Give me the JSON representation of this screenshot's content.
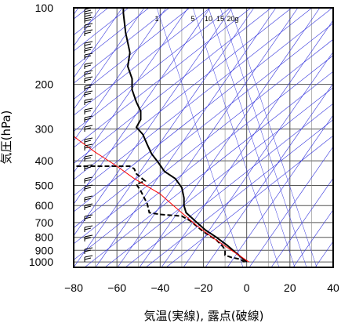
{
  "chart_data": {
    "type": "line",
    "xlabel": "気温(実線), 露点(破線)",
    "ylabel": "気圧(hPa)",
    "xlim": [
      -80,
      40
    ],
    "ylim": [
      1050,
      100
    ],
    "y_scale": "log",
    "x_ticks": [
      "−80",
      "−60",
      "−40",
      "−20",
      "0",
      "20",
      "40"
    ],
    "x_tick_values": [
      -80,
      -60,
      -40,
      -20,
      0,
      20,
      40
    ],
    "y_ticks": [
      "100",
      "200",
      "300",
      "400",
      "500",
      "600",
      "700",
      "800",
      "900",
      "1000"
    ],
    "y_tick_values": [
      100,
      200,
      300,
      400,
      500,
      600,
      700,
      800,
      900,
      1000
    ],
    "grid": true,
    "mixing_ratio_labels": [
      "1",
      "5",
      "10",
      "15",
      "20g"
    ],
    "series": [
      {
        "style": "solid",
        "color": "#000000",
        "points": [
          [
            -57,
            100
          ],
          [
            -57,
            105
          ],
          [
            -56,
            125
          ],
          [
            -54,
            150
          ],
          [
            -55,
            170
          ],
          [
            -53,
            190
          ],
          [
            -53,
            210
          ],
          [
            -51,
            235
          ],
          [
            -49,
            255
          ],
          [
            -49,
            275
          ],
          [
            -51,
            295
          ],
          [
            -48,
            315
          ],
          [
            -46,
            345
          ],
          [
            -44,
            375
          ],
          [
            -41,
            405
          ],
          [
            -38,
            440
          ],
          [
            -33,
            470
          ],
          [
            -30,
            510
          ],
          [
            -29,
            560
          ],
          [
            -29,
            600
          ],
          [
            -28,
            640
          ],
          [
            -23,
            700
          ],
          [
            -19,
            750
          ],
          [
            -14,
            800
          ],
          [
            -9,
            860
          ],
          [
            -5,
            920
          ],
          [
            0,
            1000
          ]
        ]
      },
      {
        "style": "dashed",
        "color": "#000000",
        "points": [
          [
            -82,
            420
          ],
          [
            -74,
            420
          ],
          [
            -54,
            420
          ],
          [
            -52,
            430
          ],
          [
            -51,
            450
          ],
          [
            -47,
            480
          ],
          [
            -51,
            495
          ],
          [
            -49,
            525
          ],
          [
            -46,
            590
          ],
          [
            -45,
            640
          ],
          [
            -40,
            650
          ],
          [
            -30,
            660
          ],
          [
            -26,
            690
          ],
          [
            -20,
            760
          ],
          [
            -14,
            820
          ],
          [
            -11,
            870
          ],
          [
            -10,
            900
          ],
          [
            -10,
            940
          ],
          [
            -7,
            960
          ],
          [
            -3,
            975
          ],
          [
            -1,
            1000
          ]
        ]
      },
      {
        "style": "solid",
        "color": "#ff0000",
        "points": [
          [
            -82,
            310
          ],
          [
            -78,
            330
          ],
          [
            -70,
            370
          ],
          [
            -60,
            420
          ],
          [
            -52,
            470
          ],
          [
            -40,
            540
          ],
          [
            -32,
            620
          ],
          [
            -23,
            720
          ],
          [
            -15,
            810
          ],
          [
            -7,
            900
          ],
          [
            1,
            1000
          ]
        ]
      }
    ]
  }
}
